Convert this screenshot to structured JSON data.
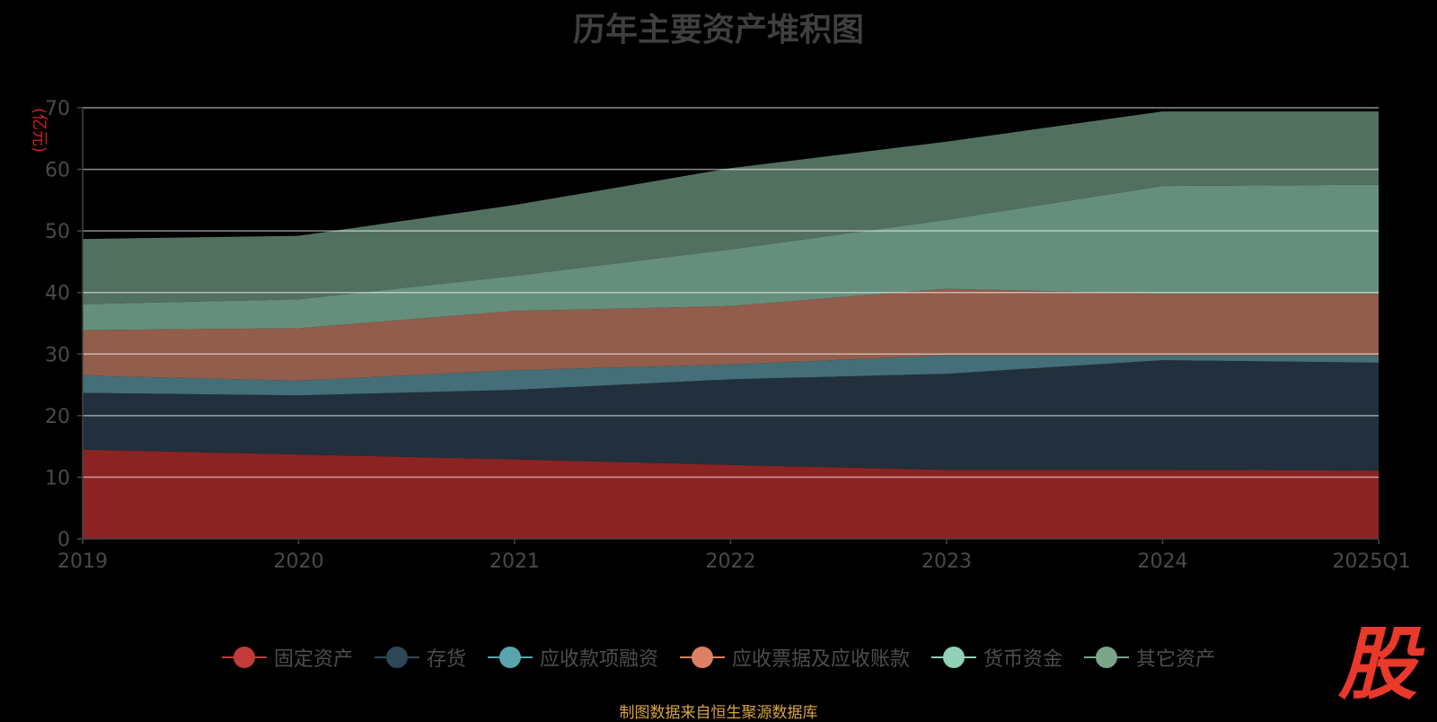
{
  "chart_data": {
    "type": "area",
    "stacked": true,
    "title": "历年主要资产堆积图",
    "ylabel": "(亿元)",
    "xlabel": "",
    "ylim": [
      0,
      70
    ],
    "yticks": [
      0,
      10,
      20,
      30,
      40,
      50,
      60,
      70
    ],
    "categories": [
      "2019",
      "2020",
      "2021",
      "2022",
      "2023",
      "2024",
      "2025Q1"
    ],
    "grid": true,
    "legend_position": "bottom",
    "series": [
      {
        "name": "固定资产",
        "color": "#8b2323",
        "values": [
          14.5,
          13.7,
          12.9,
          12.0,
          11.2,
          11.2,
          11.1
        ]
      },
      {
        "name": "存货",
        "color": "#21303c",
        "values": [
          9.2,
          9.6,
          11.3,
          13.9,
          15.6,
          17.8,
          17.5
        ]
      },
      {
        "name": "应收款项融资",
        "color": "#456f78",
        "values": [
          2.8,
          2.4,
          3.2,
          2.4,
          3.0,
          0.8,
          1.2
        ]
      },
      {
        "name": "应收票据及应收账款",
        "color": "#925d4a",
        "values": [
          7.4,
          8.5,
          9.6,
          9.5,
          10.8,
          10.0,
          10.0
        ]
      },
      {
        "name": "货币资金",
        "color": "#658f7c",
        "values": [
          4.2,
          4.7,
          5.7,
          9.2,
          11.2,
          17.5,
          17.7
        ]
      },
      {
        "name": "其它资产",
        "color": "#527060",
        "values": [
          10.6,
          10.3,
          11.5,
          13.2,
          12.7,
          12.1,
          11.9
        ]
      }
    ],
    "legend_colors": [
      "#c33a3a",
      "#2f4858",
      "#5aa4ae",
      "#dd8063",
      "#8fd1b4",
      "#7aa588"
    ]
  },
  "source_note": "制图数据来自恒生聚源数据库",
  "logo_text": "股"
}
